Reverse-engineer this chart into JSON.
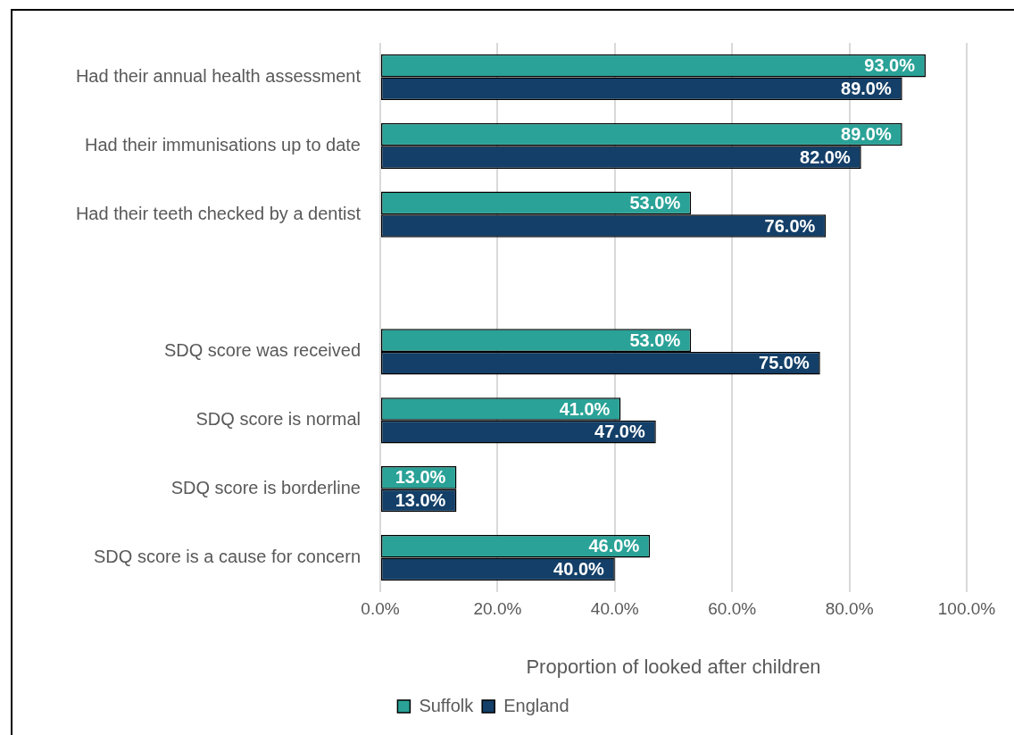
{
  "chart_data": {
    "type": "bar",
    "orientation": "horizontal",
    "categories": [
      "Had their annual health assessment",
      "Had their immunisations up to date",
      "Had their teeth checked by a dentist",
      null,
      "SDQ score was received",
      "SDQ score is normal",
      "SDQ score is borderline",
      "SDQ score is a cause for concern"
    ],
    "series": [
      {
        "name": "Suffolk",
        "color": "#2aa297",
        "values": [
          93,
          89,
          53,
          null,
          53,
          41,
          13,
          46
        ],
        "value_labels": [
          "93.0%",
          "89.0%",
          "53.0%",
          null,
          "53.0%",
          "41.0%",
          "13.0%",
          "46.0%"
        ]
      },
      {
        "name": "England",
        "color": "#133f68",
        "values": [
          89,
          82,
          76,
          null,
          75,
          47,
          13,
          40
        ],
        "value_labels": [
          "89.0%",
          "82.0%",
          "76.0%",
          null,
          "75.0%",
          "47.0%",
          "13.0%",
          "40.0%"
        ]
      }
    ],
    "xlabel": "Proportion of looked after children",
    "xlim": [
      0,
      100
    ],
    "xticks": [
      {
        "value": 0,
        "label": "0.0%"
      },
      {
        "value": 20,
        "label": "20.0%"
      },
      {
        "value": 40,
        "label": "40.0%"
      },
      {
        "value": 60,
        "label": "60.0%"
      },
      {
        "value": 80,
        "label": "80.0%"
      },
      {
        "value": 100,
        "label": "100.0%"
      }
    ],
    "grid": "x",
    "legend": "bottom"
  }
}
